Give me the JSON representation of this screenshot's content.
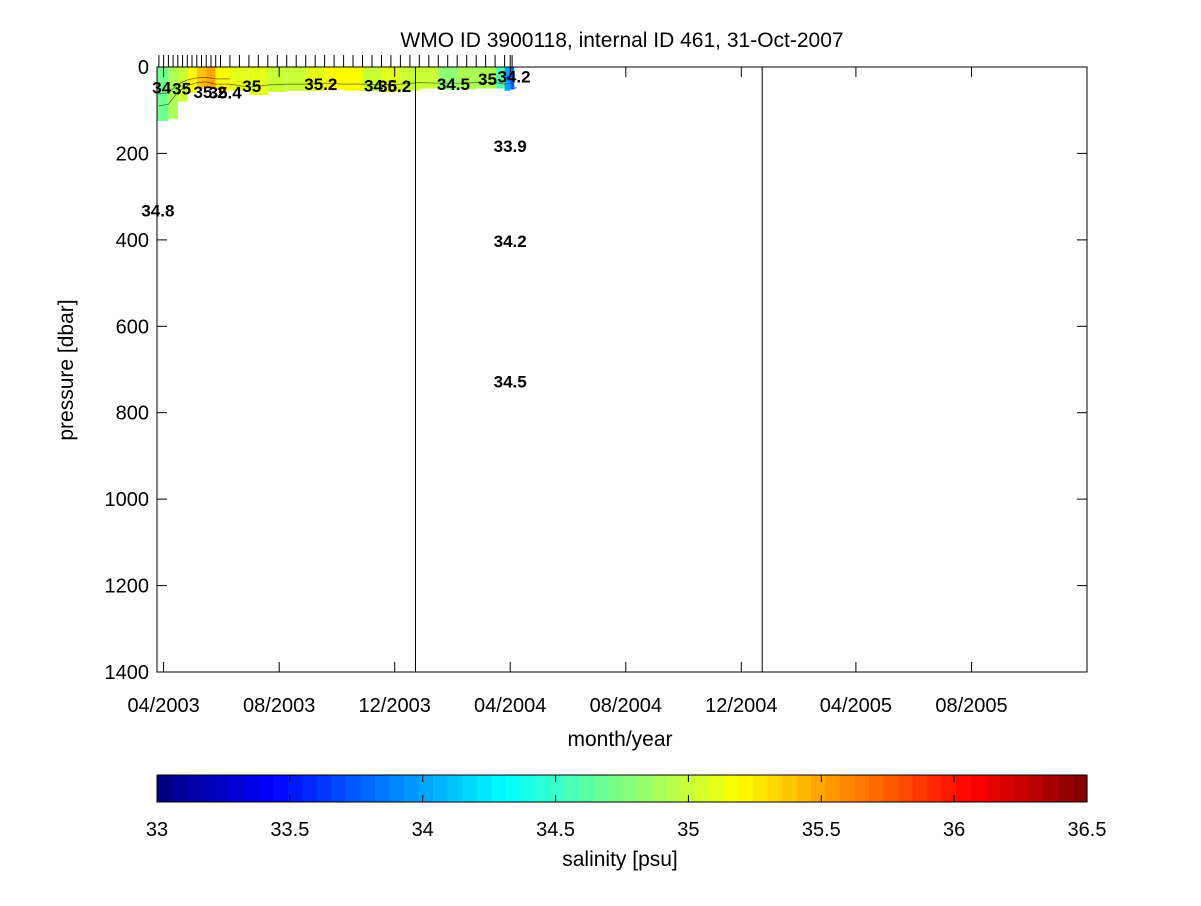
{
  "chart_data": [
    {
      "type": "heatmap",
      "title": "WMO ID 3900118, internal ID 461, 31-Oct-2007",
      "xlabel": "month/year",
      "ylabel": "pressure [dbar]",
      "x_tick_labels": [
        "04/2003",
        "08/2003",
        "12/2003",
        "04/2004",
        "08/2004",
        "12/2004",
        "04/2005",
        "08/2005"
      ],
      "x_ticks": [
        "2003-04-01",
        "2003-08-01",
        "2003-12-01",
        "2004-04-01",
        "2004-08-01",
        "2004-12-01",
        "2005-04-01",
        "2005-08-01"
      ],
      "xlim": [
        "2003-03-25",
        "2005-12-01"
      ],
      "ylim": [
        0,
        1400
      ],
      "y_reversed": true,
      "y_ticks": [
        0,
        200,
        400,
        600,
        800,
        1000,
        1200,
        1400
      ],
      "y_tick_labels": [
        "0",
        "200",
        "400",
        "600",
        "800",
        "1000",
        "1200",
        "1400"
      ],
      "vertical_lines": [
        "2003-12-23",
        "2004-12-23"
      ],
      "profile_dates": [
        "2003-03-27",
        "2003-04-01",
        "2003-04-06",
        "2003-04-11",
        "2003-04-16",
        "2003-04-21",
        "2003-04-26",
        "2003-05-01",
        "2003-05-06",
        "2003-05-11",
        "2003-05-16",
        "2003-05-21",
        "2003-05-26",
        "2003-05-31",
        "2003-06-10",
        "2003-06-20",
        "2003-06-30",
        "2003-07-10",
        "2003-07-20",
        "2003-07-30",
        "2003-08-09",
        "2003-08-19",
        "2003-08-29",
        "2003-09-08",
        "2003-09-18",
        "2003-09-28",
        "2003-10-08",
        "2003-10-18",
        "2003-10-28",
        "2003-11-07",
        "2003-11-17",
        "2003-11-27",
        "2003-12-07",
        "2003-12-17",
        "2003-12-27",
        "2004-01-06",
        "2004-01-16",
        "2004-01-26",
        "2004-02-05",
        "2004-02-15",
        "2004-02-25",
        "2004-03-06",
        "2004-03-16",
        "2004-03-26",
        "2004-04-01",
        "2004-04-03"
      ],
      "surface_field": [
        {
          "date": "2003-03-27",
          "depth": 125,
          "salinity": 34.7
        },
        {
          "date": "2003-04-06",
          "depth": 120,
          "salinity": 34.9
        },
        {
          "date": "2003-04-16",
          "depth": 80,
          "salinity": 35.0
        },
        {
          "date": "2003-04-26",
          "depth": 60,
          "salinity": 35.2
        },
        {
          "date": "2003-05-06",
          "depth": 50,
          "salinity": 35.4
        },
        {
          "date": "2003-05-16",
          "depth": 48,
          "salinity": 35.5
        },
        {
          "date": "2003-05-26",
          "depth": 55,
          "salinity": 35.2
        },
        {
          "date": "2003-06-10",
          "depth": 55,
          "salinity": 35.1
        },
        {
          "date": "2003-06-30",
          "depth": 65,
          "salinity": 35.1
        },
        {
          "date": "2003-07-20",
          "depth": 58,
          "salinity": 35.0
        },
        {
          "date": "2003-08-09",
          "depth": 55,
          "salinity": 35.0
        },
        {
          "date": "2003-08-29",
          "depth": 55,
          "salinity": 35.1
        },
        {
          "date": "2003-09-18",
          "depth": 52,
          "salinity": 35.2
        },
        {
          "date": "2003-10-08",
          "depth": 55,
          "salinity": 35.2
        },
        {
          "date": "2003-10-28",
          "depth": 55,
          "salinity": 35.0
        },
        {
          "date": "2003-11-17",
          "depth": 58,
          "salinity": 35.1
        },
        {
          "date": "2003-12-07",
          "depth": 55,
          "salinity": 35.0
        },
        {
          "date": "2003-12-27",
          "depth": 50,
          "salinity": 35.0
        },
        {
          "date": "2004-01-16",
          "depth": 52,
          "salinity": 34.8
        },
        {
          "date": "2004-02-05",
          "depth": 52,
          "salinity": 34.9
        },
        {
          "date": "2004-02-25",
          "depth": 50,
          "salinity": 34.9
        },
        {
          "date": "2004-03-16",
          "depth": 50,
          "salinity": 34.6
        },
        {
          "date": "2004-03-26",
          "depth": 55,
          "salinity": 34.0
        },
        {
          "date": "2004-04-01",
          "depth": 52,
          "salinity": 33.8
        }
      ],
      "contour_labels": [
        {
          "text": "34.8",
          "date": "2003-03-26",
          "pressure": 330
        },
        {
          "text": "33.9",
          "date": "2004-04-01",
          "pressure": 180
        },
        {
          "text": "34.2",
          "date": "2004-04-01",
          "pressure": 400
        },
        {
          "text": "34.5",
          "date": "2004-04-01",
          "pressure": 725
        },
        {
          "text": "35",
          "date": "2003-07-03",
          "pressure": 42
        },
        {
          "text": "35.2",
          "date": "2003-09-14",
          "pressure": 37
        },
        {
          "text": "35.2",
          "date": "2003-12-01",
          "pressure": 42
        },
        {
          "text": "34.5",
          "date": "2004-02-01",
          "pressure": 37
        },
        {
          "text": "34",
          "date": "2003-03-30",
          "pressure": 45
        },
        {
          "text": "35",
          "date": "2003-04-20",
          "pressure": 48
        },
        {
          "text": "35.2",
          "date": "2003-05-20",
          "pressure": 55
        },
        {
          "text": "35.4",
          "date": "2003-06-05",
          "pressure": 57
        },
        {
          "text": "34.6",
          "date": "2003-11-16",
          "pressure": 40
        },
        {
          "text": "35",
          "date": "2004-03-08",
          "pressure": 25
        },
        {
          "text": "34.2",
          "date": "2004-04-05",
          "pressure": 20
        }
      ],
      "colorbar": {
        "label": "salinity [psu]",
        "range": [
          33,
          36.5
        ],
        "ticks": [
          33,
          33.5,
          34,
          34.5,
          35,
          35.5,
          36,
          36.5
        ],
        "tick_labels": [
          "33",
          "33.5",
          "34",
          "34.5",
          "35",
          "35.5",
          "36",
          "36.5"
        ],
        "colormap": "jet",
        "bands": 64
      }
    }
  ]
}
